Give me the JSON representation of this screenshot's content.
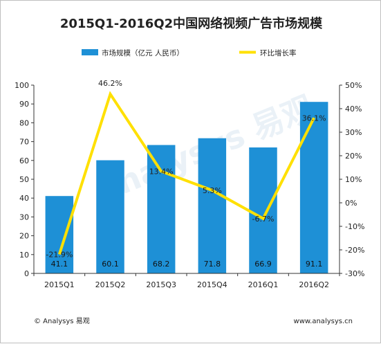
{
  "chart_data": {
    "type": "bar",
    "title": "2015Q1-2016Q2中国网络视频广告市场规模",
    "categories": [
      "2015Q1",
      "2015Q2",
      "2015Q3",
      "2015Q4",
      "2016Q1",
      "2016Q2"
    ],
    "series": [
      {
        "name": "市场规模（亿元 人民币）",
        "type": "bar",
        "axis": "left",
        "color": "#1e90d6",
        "values": [
          41.1,
          60.1,
          68.2,
          71.8,
          66.9,
          91.1
        ],
        "labels": [
          "41.1",
          "60.1",
          "68.2",
          "71.8",
          "66.9",
          "91.1"
        ]
      },
      {
        "name": "环比增长率",
        "type": "line",
        "axis": "right",
        "color": "#ffe000",
        "values": [
          -21.9,
          46.2,
          13.4,
          5.3,
          -6.7,
          36.1
        ],
        "labels": [
          "-21.9%",
          "46.2%",
          "13.4%",
          "5.3%",
          "-6.7%",
          "36.1%"
        ]
      }
    ],
    "left_axis": {
      "ylim": [
        0,
        100
      ],
      "ticks": [
        0,
        10,
        20,
        30,
        40,
        50,
        60,
        70,
        80,
        90,
        100
      ],
      "tick_labels": [
        "0",
        "10",
        "20",
        "30",
        "40",
        "50",
        "60",
        "70",
        "80",
        "90",
        "100"
      ]
    },
    "right_axis": {
      "ylim": [
        -30,
        50
      ],
      "ticks": [
        -30,
        -20,
        -10,
        0,
        10,
        20,
        30,
        40,
        50
      ],
      "tick_labels": [
        "-30%",
        "-20%",
        "-10%",
        "0%",
        "10%",
        "20%",
        "30%",
        "40%",
        "50%"
      ]
    },
    "legend_position": "top",
    "grid": false
  },
  "footer": {
    "copyright": "© Analysys 易观",
    "url": "www.analysys.cn"
  },
  "watermark": {
    "text": "Analysys 易观"
  }
}
